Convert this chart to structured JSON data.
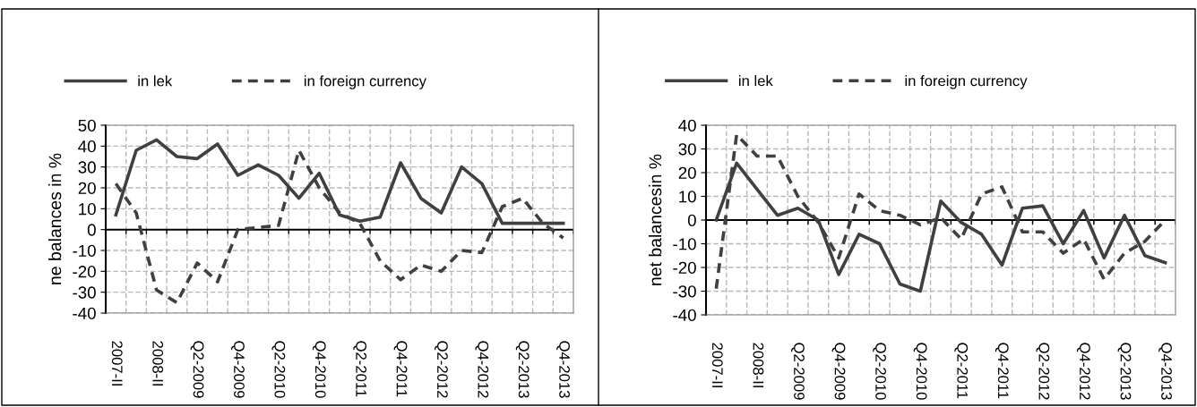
{
  "chart_data": [
    {
      "type": "line",
      "ylabel": "ne balances in %",
      "categories": [
        "2007-II",
        null,
        "2008-II",
        null,
        "Q2-2009",
        null,
        "Q4-2009",
        null,
        "Q2-2010",
        null,
        "Q4-2010",
        null,
        "Q2-2011",
        null,
        "Q4-2011",
        null,
        "Q2-2012",
        null,
        "Q4-2012",
        null,
        "Q2-2013",
        null,
        "Q4-2013"
      ],
      "series": [
        {
          "name": "in lek",
          "color": "#404040",
          "line_style": "solid",
          "values": [
            7,
            38,
            43,
            35,
            34,
            41,
            26,
            31,
            26,
            15,
            27,
            7,
            4,
            6,
            32,
            15,
            8,
            30,
            22,
            3,
            3,
            3,
            3
          ]
        },
        {
          "name": "in foreign currency",
          "color": "#404040",
          "line_style": "dashed",
          "values": [
            22,
            8,
            -29,
            -35,
            -16,
            -25,
            0,
            1,
            2,
            38,
            20,
            8,
            3,
            -15,
            -24,
            -17,
            -20,
            -10,
            -11,
            11,
            15,
            3,
            -4
          ]
        }
      ],
      "ylim": [
        -40,
        50
      ],
      "yticks": [
        -40,
        -30,
        -20,
        -10,
        0,
        10,
        20,
        30,
        40,
        50
      ],
      "grid": true,
      "legend": "top",
      "marker": "none"
    },
    {
      "type": "line",
      "ylabel": "net balancesin %",
      "categories": [
        "2007-II",
        null,
        "2008-II",
        null,
        "Q2-2009",
        null,
        "Q4-2009",
        null,
        "Q2-2010",
        null,
        "Q4-2010",
        null,
        "Q2-2011",
        null,
        "Q4-2011",
        null,
        "Q2-2012",
        null,
        "Q4-2012",
        null,
        "Q2-2013",
        null,
        "Q4-2013"
      ],
      "series": [
        {
          "name": "in lek",
          "color": "#404040",
          "line_style": "solid",
          "values": [
            0,
            24,
            13,
            2,
            5,
            0,
            -23,
            -6,
            -10,
            -27,
            -30,
            8,
            -1,
            -6,
            -19,
            5,
            6,
            -10,
            4,
            -16,
            2,
            -15,
            -18
          ]
        },
        {
          "name": "in foreign currency",
          "color": "#404040",
          "line_style": "dashed",
          "values": [
            -29,
            36,
            27,
            27,
            10,
            -1,
            -16,
            11,
            4,
            2,
            -2,
            1,
            -8,
            11,
            14,
            -5,
            -5,
            -14,
            -8,
            -25,
            -14,
            -9,
            0
          ]
        }
      ],
      "ylim": [
        -40,
        40
      ],
      "yticks": [
        -40,
        -30,
        -20,
        -10,
        0,
        10,
        20,
        30,
        40
      ],
      "grid": true,
      "legend": "top",
      "marker": "none"
    }
  ]
}
